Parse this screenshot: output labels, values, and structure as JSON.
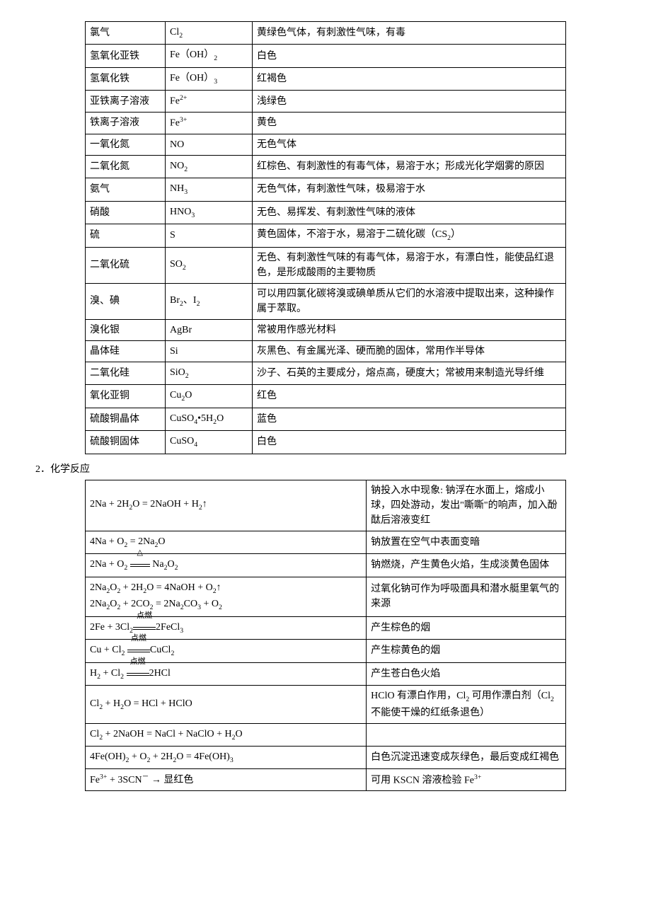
{
  "substances": {
    "rows": [
      {
        "name": "氯气",
        "formula": "Cl<sub>2</sub>",
        "desc": "黄绿色气体，有刺激性气味，有毒"
      },
      {
        "name": "氢氧化亚铁",
        "formula": "Fe（OH）<sub>2</sub>",
        "desc": "白色"
      },
      {
        "name": "氢氧化铁",
        "formula": "Fe（OH）<sub>3</sub>",
        "desc": "红褐色"
      },
      {
        "name": "亚铁离子溶液",
        "formula": "Fe<sup>2+</sup>",
        "desc": "浅绿色"
      },
      {
        "name": "铁离子溶液",
        "formula": "Fe<sup>3+</sup>",
        "desc": "黄色"
      },
      {
        "name": "一氧化氮",
        "formula": "NO",
        "desc": "无色气体"
      },
      {
        "name": "二氧化氮",
        "formula": "NO<sub>2</sub>",
        "desc": "红棕色、有刺激性的有毒气体，易溶于水；形成光化学烟雾的原因"
      },
      {
        "name": "氨气",
        "formula": "NH<sub>3</sub>",
        "desc": "无色气体，有刺激性气味，极易溶于水"
      },
      {
        "name": "硝酸",
        "formula": "HNO<sub>3</sub>",
        "desc": "无色、易挥发、有刺激性气味的液体"
      },
      {
        "name": "硫",
        "formula": "S",
        "desc": "黄色固体，不溶于水，易溶于二硫化碳（CS<sub>2</sub>）"
      },
      {
        "name": "二氧化硫",
        "formula": "SO<sub>2</sub>",
        "desc": "无色、有刺激性气味的有毒气体，易溶于水，有漂白性，能使品红退色，是形成酸雨的主要物质"
      },
      {
        "name": "溴、碘",
        "formula": "Br<sub>2</sub>、I<sub>2</sub>",
        "desc": "可以用四氯化碳将溴或碘单质从它们的水溶液中提取出来，这种操作属于萃取。"
      },
      {
        "name": "溴化银",
        "formula": "AgBr",
        "desc": "常被用作感光材料"
      },
      {
        "name": "晶体硅",
        "formula": "Si",
        "desc": "灰黑色、有金属光泽、硬而脆的固体，常用作半导体"
      },
      {
        "name": "二氧化硅",
        "formula": "SiO<sub>2</sub>",
        "desc": "沙子、石英的主要成分，熔点高，硬度大；常被用来制造光导纤维"
      },
      {
        "name": "氧化亚铜",
        "formula": "Cu<sub>2</sub>O",
        "desc": "红色"
      },
      {
        "name": "硫酸铜晶体",
        "formula": "CuSO<sub>4</sub>•5H<sub>2</sub>O",
        "desc": "蓝色"
      },
      {
        "name": "硫酸铜固体",
        "formula": "CuSO<sub>4</sub>",
        "desc": "白色"
      }
    ]
  },
  "section_title": "2．化学反应",
  "reactions": {
    "rows": [
      {
        "eq": "2Na + 2H<sub>2</sub>O = 2NaOH + H<sub>2</sub>↑",
        "obs": "钠投入水中现象: 钠浮在水面上，熔成小球，四处游动，发出\"嘶嘶\"的响声，加入酚酞后溶液变红"
      },
      {
        "eq": "4Na + O<sub>2</sub> = 2Na<sub>2</sub>O",
        "obs": "钠放置在空气中表面变暗"
      },
      {
        "eq": "2Na + O<sub>2</sub> <span style=\"display:inline-block;position:relative;vertical-align:middle;\"><span style=\"position:absolute;top:-14px;left:0;width:100%;text-align:center;font-size:11px;\">△</span><span style=\"border-top:1px solid #000;border-bottom:1px solid #000;display:inline-block;height:2px;width:28px;\"></span></span> Na<sub>2</sub>O<sub>2</sub>",
        "obs": "钠燃烧，产生黄色火焰，生成淡黄色固体"
      },
      {
        "eq": "2Na<sub>2</sub>O<sub>2</sub> + 2H<sub>2</sub>O = 4NaOH + O<sub>2</sub>↑<br>2Na<sub>2</sub>O<sub>2</sub> + 2CO<sub>2</sub> = 2Na<sub>2</sub>CO<sub>3</sub> + O<sub>2</sub>",
        "obs": "过氧化钠可作为呼吸面具和潜水艇里氧气的来源"
      },
      {
        "eq": "2Fe + 3Cl<sub>2</sub><span style=\"display:inline-block;position:relative;vertical-align:middle;\"><span style=\"position:absolute;top:-14px;left:0;width:100%;text-align:center;font-size:11px;\">点燃</span><span style=\"border-top:1px solid #000;border-bottom:1px solid #000;display:inline-block;height:2px;width:32px;\"></span></span>2FeCl<sub>3</sub>",
        "obs": "产生棕色的烟"
      },
      {
        "eq": "Cu + Cl<sub>2</sub> <span style=\"display:inline-block;position:relative;vertical-align:middle;\"><span style=\"position:absolute;top:-14px;left:0;width:100%;text-align:center;font-size:11px;\">点燃</span><span style=\"border-top:1px solid #000;border-bottom:1px solid #000;display:inline-block;height:2px;width:32px;\"></span></span>CuCl<sub>2</sub>",
        "obs": "产生棕黄色的烟"
      },
      {
        "eq": "H<sub>2</sub> + Cl<sub>2</sub> <span style=\"display:inline-block;position:relative;vertical-align:middle;\"><span style=\"position:absolute;top:-14px;left:0;width:100%;text-align:center;font-size:11px;\">点燃</span><span style=\"border-top:1px solid #000;border-bottom:1px solid #000;display:inline-block;height:2px;width:32px;\"></span></span>2HCl",
        "obs": "产生苍白色火焰"
      },
      {
        "eq": "Cl<sub>2</sub> + H<sub>2</sub>O = HCl + HClO",
        "obs": "HClO 有漂白作用，Cl<sub>2</sub> 可用作漂白剂（Cl<sub>2</sub> 不能使干燥的红纸条退色）"
      },
      {
        "eq": "Cl<sub>2</sub> + 2NaOH = NaCl + NaClO + H<sub>2</sub>O",
        "obs": ""
      },
      {
        "eq": "4Fe(OH)<sub>2</sub> + O<sub>2</sub> + 2H<sub>2</sub>O = 4Fe(OH)<sub>3</sub>",
        "obs": "白色沉淀迅速变成灰绿色，最后变成红褐色"
      },
      {
        "eq": "Fe<sup>3+</sup> + 3SCN<sup>－</sup> <span class=\"arrow-note\">→</span> 显红色",
        "obs": "可用 KSCN 溶液检验 Fe<sup>3+</sup>"
      }
    ]
  }
}
